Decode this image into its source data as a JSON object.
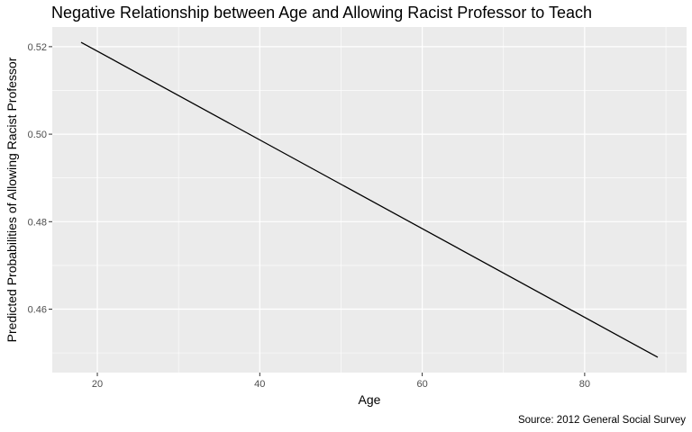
{
  "chart_data": {
    "type": "line",
    "title": "Negative Relationship between Age and Allowing Racist Professor to Teach",
    "xlabel": "Age",
    "ylabel": "Predicted Probabilities of Allowing Racist Professor",
    "caption": "Source: 2012 General Social Survey",
    "xlim": [
      14.45,
      92.55
    ],
    "ylim": [
      0.4455,
      0.5245
    ],
    "x_ticks": [
      20,
      40,
      60,
      80
    ],
    "x_tick_labels": [
      "20",
      "40",
      "60",
      "80"
    ],
    "y_ticks": [
      0.46,
      0.48,
      0.5,
      0.52
    ],
    "y_tick_labels": [
      "0.46",
      "0.48",
      "0.50",
      "0.52"
    ],
    "grid": true,
    "panel_background": "#ebebeb",
    "grid_color": "#ffffff",
    "line_color": "#000000",
    "series": [
      {
        "x": [
          18,
          89
        ],
        "y": [
          0.521,
          0.449
        ]
      }
    ]
  }
}
